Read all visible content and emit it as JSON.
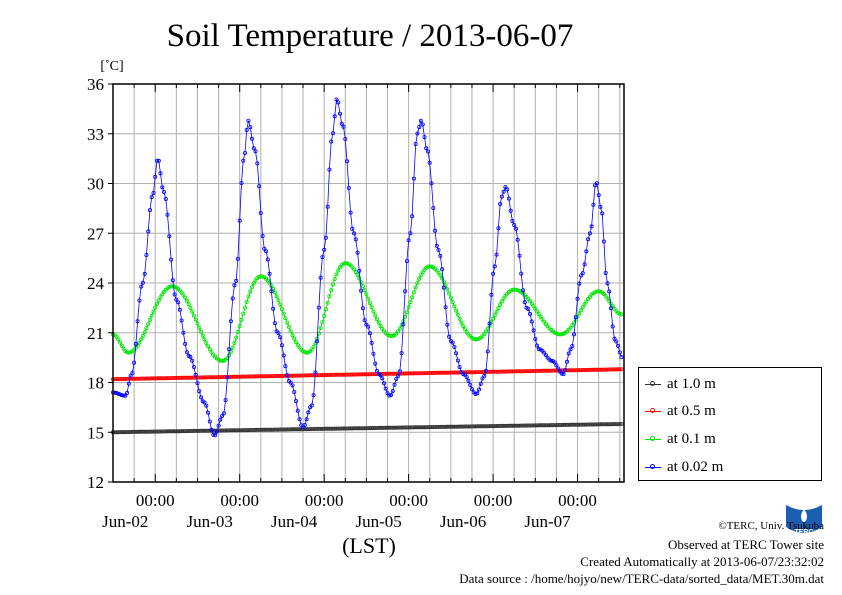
{
  "chart_data": {
    "type": "line",
    "title": "Soil Temperature / 2013-06-07",
    "ylabel_unit": "[˚C]",
    "xlabel": "(LST)",
    "ylim": [
      12,
      36
    ],
    "yticks": [
      12,
      15,
      18,
      21,
      24,
      27,
      30,
      33,
      36
    ],
    "xlim": [
      0,
      6.05
    ],
    "x_unit": "days from 2013-06-01 12:00 LST",
    "xticks": [
      {
        "x": 0.5,
        "time": "00:00",
        "date": "Jun-02"
      },
      {
        "x": 1.5,
        "time": "00:00",
        "date": "Jun-03"
      },
      {
        "x": 2.5,
        "time": "00:00",
        "date": "Jun-04"
      },
      {
        "x": 3.5,
        "time": "00:00",
        "date": "Jun-05"
      },
      {
        "x": 4.5,
        "time": "00:00",
        "date": "Jun-06"
      },
      {
        "x": 5.5,
        "time": "00:00",
        "date": "Jun-07"
      }
    ],
    "grid": true,
    "legend_position": "right",
    "series": [
      {
        "name": "at 1.0 m",
        "color": "#333333",
        "kind": "linear",
        "start": 15.0,
        "end": 15.5
      },
      {
        "name": "at 0.5 m",
        "color": "#ff0000",
        "kind": "linear",
        "start": 18.2,
        "end": 18.8
      },
      {
        "name": "at 0.1 m",
        "color": "#00e600",
        "kind": "keypoints",
        "points": [
          [
            0,
            20.9
          ],
          [
            0.18,
            19.8
          ],
          [
            0.7,
            23.8
          ],
          [
            1.3,
            19.3
          ],
          [
            1.75,
            24.4
          ],
          [
            2.3,
            19.8
          ],
          [
            2.75,
            25.2
          ],
          [
            3.3,
            20.8
          ],
          [
            3.75,
            25.0
          ],
          [
            4.3,
            20.6
          ],
          [
            4.75,
            23.6
          ],
          [
            5.3,
            20.9
          ],
          [
            5.75,
            23.5
          ],
          [
            6.03,
            22.1
          ]
        ]
      },
      {
        "name": "at 0.02 m",
        "color": "#0000ff",
        "kind": "keypoints",
        "points": [
          [
            0,
            17.4
          ],
          [
            0.15,
            17.2
          ],
          [
            0.22,
            18.5
          ],
          [
            0.35,
            24.0
          ],
          [
            0.47,
            29.3
          ],
          [
            0.53,
            31.5
          ],
          [
            0.6,
            29.5
          ],
          [
            0.75,
            23.0
          ],
          [
            0.9,
            19.6
          ],
          [
            1.08,
            16.8
          ],
          [
            1.2,
            14.8
          ],
          [
            1.3,
            16.0
          ],
          [
            1.45,
            24.0
          ],
          [
            1.55,
            31.5
          ],
          [
            1.6,
            33.8
          ],
          [
            1.68,
            32.0
          ],
          [
            1.8,
            26.0
          ],
          [
            1.95,
            21.0
          ],
          [
            2.1,
            18.0
          ],
          [
            2.25,
            15.3
          ],
          [
            2.35,
            16.6
          ],
          [
            2.5,
            26.0
          ],
          [
            2.6,
            33.0
          ],
          [
            2.65,
            35.1
          ],
          [
            2.72,
            33.5
          ],
          [
            2.85,
            27.0
          ],
          [
            3.0,
            21.5
          ],
          [
            3.15,
            18.5
          ],
          [
            3.28,
            17.2
          ],
          [
            3.38,
            18.4
          ],
          [
            3.52,
            27.0
          ],
          [
            3.6,
            33.0
          ],
          [
            3.65,
            33.8
          ],
          [
            3.72,
            32.0
          ],
          [
            3.85,
            26.0
          ],
          [
            4.0,
            20.5
          ],
          [
            4.15,
            18.5
          ],
          [
            4.3,
            17.3
          ],
          [
            4.4,
            18.4
          ],
          [
            4.52,
            25.0
          ],
          [
            4.6,
            29.2
          ],
          [
            4.65,
            29.8
          ],
          [
            4.75,
            27.5
          ],
          [
            4.9,
            22.5
          ],
          [
            5.05,
            20.0
          ],
          [
            5.2,
            19.3
          ],
          [
            5.33,
            18.5
          ],
          [
            5.42,
            20.0
          ],
          [
            5.55,
            24.5
          ],
          [
            5.65,
            27.0
          ],
          [
            5.72,
            30.1
          ],
          [
            5.78,
            28.5
          ],
          [
            5.85,
            24.0
          ],
          [
            5.95,
            20.5
          ],
          [
            6.03,
            19.5
          ]
        ]
      }
    ]
  },
  "legend": {
    "items": [
      {
        "label": "at 1.0 m",
        "color": "#333333"
      },
      {
        "label": "at 0.5 m",
        "color": "#ff0000"
      },
      {
        "label": "at 0.1 m",
        "color": "#00e600"
      },
      {
        "label": "at 0.02 m",
        "color": "#0000ff"
      }
    ]
  },
  "credits": {
    "copyright": "©TERC, Univ. Tsukuba",
    "observed": "Observed at TERC Tower site",
    "created": "Created Automatically at 2013-06-07/23:32:02",
    "source": "Data source : /home/hojyo/new/TERC-data/sorted_data/MET.30m.dat"
  },
  "logo": {
    "name": "terc-logo",
    "text": "TERC",
    "color": "#1a5fb4"
  }
}
